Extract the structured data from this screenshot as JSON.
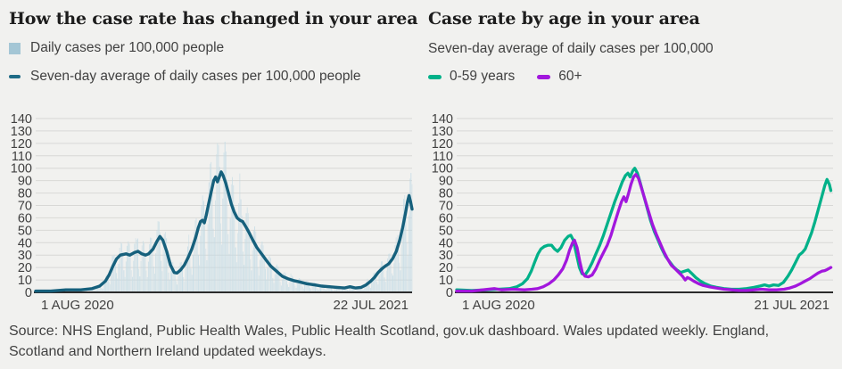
{
  "page": {
    "background": "#f1f1ef",
    "grid_color": "#d8d8d6",
    "baseline_color": "#2b2b2b",
    "axis_text_color": "#404040"
  },
  "left_panel": {
    "title": "How the case rate has changed in your area",
    "legend": [
      {
        "label": "Daily cases per 100,000 people",
        "swatch": "square",
        "color": "#a4c6d5"
      },
      {
        "label": "Seven-day average of daily cases per 100,000 people",
        "swatch": "dash",
        "color": "#1f6b86"
      }
    ]
  },
  "right_panel": {
    "title": "Case rate by age in your area",
    "subtitle": "Seven-day average of daily cases per 100,000",
    "legend": [
      {
        "label": "0-59 years",
        "swatch": "dash",
        "color": "#00b189"
      },
      {
        "label": "60+",
        "swatch": "dash",
        "color": "#a217dd"
      }
    ]
  },
  "footer": {
    "line1": "Source: NHS England, Public Health Wales, Public Health Scotland, gov.uk dashboard. Wales updated weekly. England,",
    "line2": "Scotland and Northern Ireland updated weekdays."
  },
  "chart_data": [
    {
      "type": "bar+line",
      "title": "How the case rate has changed in your area",
      "ylabel": "Daily cases per 100,000 people",
      "ylim": [
        0,
        140
      ],
      "y_ticks": [
        0,
        10,
        20,
        30,
        40,
        50,
        60,
        70,
        80,
        90,
        100,
        110,
        120,
        130,
        140
      ],
      "grid": true,
      "x_axis": {
        "start_label": "1 AUG 2020",
        "end_label": "22 JUL 2021"
      },
      "bars": {
        "name": "Daily cases per 100,000 people",
        "color": "#c3dbe5",
        "n": 355,
        "estimated_from_average": true,
        "weekly_pattern": [
          0.4,
          0.8,
          1.22,
          1.35,
          1.3,
          1.08,
          0.58
        ],
        "spike_every": 24,
        "spike_factor": 1.22,
        "max_value": 140.5,
        "opacity_cycle": [
          0.5,
          0.75,
          0.6,
          0.85,
          0.55,
          0.7,
          0.8,
          0.65,
          0.9,
          0.6
        ]
      },
      "line": {
        "name": "Seven-day average of daily cases per 100,000 people",
        "color": "#16607c",
        "width": 3.4,
        "points": [
          [
            0,
            1
          ],
          [
            0.04,
            1
          ],
          [
            0.08,
            2
          ],
          [
            0.12,
            2
          ],
          [
            0.15,
            3
          ],
          [
            0.17,
            5
          ],
          [
            0.185,
            9
          ],
          [
            0.195,
            14
          ],
          [
            0.205,
            21
          ],
          [
            0.215,
            27
          ],
          [
            0.225,
            30
          ],
          [
            0.24,
            31
          ],
          [
            0.25,
            30
          ],
          [
            0.262,
            32
          ],
          [
            0.272,
            33
          ],
          [
            0.282,
            31
          ],
          [
            0.292,
            30
          ],
          [
            0.3,
            31
          ],
          [
            0.312,
            35
          ],
          [
            0.322,
            41
          ],
          [
            0.33,
            45
          ],
          [
            0.338,
            42
          ],
          [
            0.348,
            33
          ],
          [
            0.358,
            22
          ],
          [
            0.368,
            16
          ],
          [
            0.375,
            15.5
          ],
          [
            0.385,
            18
          ],
          [
            0.395,
            22
          ],
          [
            0.405,
            28
          ],
          [
            0.415,
            35
          ],
          [
            0.425,
            44
          ],
          [
            0.432,
            52
          ],
          [
            0.438,
            57
          ],
          [
            0.443,
            58
          ],
          [
            0.448,
            56
          ],
          [
            0.453,
            62
          ],
          [
            0.46,
            72
          ],
          [
            0.467,
            82
          ],
          [
            0.473,
            90
          ],
          [
            0.478,
            93
          ],
          [
            0.483,
            89
          ],
          [
            0.488,
            93
          ],
          [
            0.493,
            97
          ],
          [
            0.498,
            94
          ],
          [
            0.505,
            88
          ],
          [
            0.512,
            80
          ],
          [
            0.52,
            71
          ],
          [
            0.527,
            65
          ],
          [
            0.535,
            60
          ],
          [
            0.543,
            58
          ],
          [
            0.55,
            57
          ],
          [
            0.558,
            53
          ],
          [
            0.567,
            48
          ],
          [
            0.577,
            42
          ],
          [
            0.588,
            36
          ],
          [
            0.6,
            31
          ],
          [
            0.612,
            26
          ],
          [
            0.625,
            21
          ],
          [
            0.64,
            17
          ],
          [
            0.655,
            13
          ],
          [
            0.67,
            11
          ],
          [
            0.685,
            9.5
          ],
          [
            0.7,
            8.5
          ],
          [
            0.72,
            7
          ],
          [
            0.74,
            6
          ],
          [
            0.76,
            5
          ],
          [
            0.78,
            4.5
          ],
          [
            0.8,
            4
          ],
          [
            0.82,
            3.5
          ],
          [
            0.835,
            4.5
          ],
          [
            0.85,
            3.5
          ],
          [
            0.865,
            4
          ],
          [
            0.878,
            6
          ],
          [
            0.89,
            9
          ],
          [
            0.9,
            12
          ],
          [
            0.91,
            16
          ],
          [
            0.92,
            19
          ],
          [
            0.928,
            21
          ],
          [
            0.938,
            23
          ],
          [
            0.948,
            27
          ],
          [
            0.958,
            33
          ],
          [
            0.967,
            42
          ],
          [
            0.975,
            52
          ],
          [
            0.982,
            63
          ],
          [
            0.988,
            73
          ],
          [
            0.992,
            78
          ],
          [
            0.996,
            73
          ],
          [
            1,
            67
          ]
        ]
      }
    },
    {
      "type": "line",
      "title": "Case rate by age in your area",
      "ylabel": "Seven-day average of daily cases per 100,000",
      "ylim": [
        0,
        140
      ],
      "y_ticks": [
        0,
        10,
        20,
        30,
        40,
        50,
        60,
        70,
        80,
        90,
        100,
        110,
        120,
        130,
        140
      ],
      "grid": true,
      "x_axis": {
        "start_label": "1 AUG 2020",
        "end_label": "21 JUL 2021"
      },
      "series": [
        {
          "name": "0-59 years",
          "color": "#00b189",
          "width": 3.3,
          "points": [
            [
              0,
              2
            ],
            [
              0.04,
              1.5
            ],
            [
              0.08,
              2
            ],
            [
              0.11,
              2.5
            ],
            [
              0.14,
              3
            ],
            [
              0.16,
              4.5
            ],
            [
              0.175,
              7
            ],
            [
              0.188,
              11
            ],
            [
              0.198,
              17
            ],
            [
              0.208,
              25
            ],
            [
              0.216,
              31
            ],
            [
              0.224,
              35
            ],
            [
              0.233,
              37
            ],
            [
              0.243,
              38
            ],
            [
              0.252,
              38
            ],
            [
              0.26,
              35
            ],
            [
              0.268,
              33
            ],
            [
              0.277,
              36
            ],
            [
              0.287,
              42
            ],
            [
              0.296,
              45
            ],
            [
              0.303,
              46
            ],
            [
              0.31,
              42
            ],
            [
              0.318,
              31
            ],
            [
              0.326,
              20
            ],
            [
              0.333,
              15
            ],
            [
              0.341,
              14
            ],
            [
              0.35,
              18
            ],
            [
              0.36,
              24
            ],
            [
              0.37,
              31
            ],
            [
              0.38,
              38
            ],
            [
              0.39,
              46
            ],
            [
              0.4,
              55
            ],
            [
              0.41,
              64
            ],
            [
              0.42,
              73
            ],
            [
              0.43,
              81
            ],
            [
              0.44,
              89
            ],
            [
              0.448,
              94
            ],
            [
              0.455,
              96
            ],
            [
              0.461,
              93
            ],
            [
              0.468,
              98
            ],
            [
              0.473,
              100
            ],
            [
              0.48,
              96
            ],
            [
              0.488,
              88
            ],
            [
              0.497,
              78
            ],
            [
              0.506,
              68
            ],
            [
              0.515,
              58
            ],
            [
              0.525,
              49
            ],
            [
              0.535,
              42
            ],
            [
              0.545,
              35
            ],
            [
              0.555,
              29
            ],
            [
              0.565,
              25
            ],
            [
              0.575,
              21
            ],
            [
              0.585,
              18
            ],
            [
              0.595,
              16
            ],
            [
              0.605,
              17
            ],
            [
              0.615,
              18
            ],
            [
              0.625,
              15
            ],
            [
              0.635,
              12
            ],
            [
              0.648,
              9
            ],
            [
              0.66,
              7
            ],
            [
              0.675,
              5
            ],
            [
              0.69,
              4
            ],
            [
              0.71,
              3
            ],
            [
              0.73,
              2.5
            ],
            [
              0.75,
              2.5
            ],
            [
              0.77,
              3
            ],
            [
              0.79,
              4
            ],
            [
              0.805,
              5
            ],
            [
              0.818,
              6
            ],
            [
              0.83,
              5
            ],
            [
              0.842,
              6
            ],
            [
              0.855,
              5.5
            ],
            [
              0.868,
              8
            ],
            [
              0.88,
              13
            ],
            [
              0.89,
              18
            ],
            [
              0.9,
              24
            ],
            [
              0.91,
              30
            ],
            [
              0.918,
              32
            ],
            [
              0.926,
              35
            ],
            [
              0.934,
              41
            ],
            [
              0.943,
              48
            ],
            [
              0.952,
              57
            ],
            [
              0.961,
              67
            ],
            [
              0.97,
              77
            ],
            [
              0.978,
              86
            ],
            [
              0.984,
              91
            ],
            [
              0.99,
              87
            ],
            [
              0.994,
              82
            ]
          ]
        },
        {
          "name": "60+",
          "color": "#a217dd",
          "width": 3.3,
          "points": [
            [
              0,
              1
            ],
            [
              0.04,
              1
            ],
            [
              0.07,
              2
            ],
            [
              0.1,
              3
            ],
            [
              0.12,
              2
            ],
            [
              0.15,
              2.5
            ],
            [
              0.18,
              2
            ],
            [
              0.2,
              2.5
            ],
            [
              0.215,
              3
            ],
            [
              0.23,
              4.5
            ],
            [
              0.245,
              7
            ],
            [
              0.258,
              10
            ],
            [
              0.27,
              14
            ],
            [
              0.282,
              19
            ],
            [
              0.292,
              26
            ],
            [
              0.3,
              34
            ],
            [
              0.308,
              40
            ],
            [
              0.313,
              42
            ],
            [
              0.32,
              36
            ],
            [
              0.327,
              25
            ],
            [
              0.334,
              16
            ],
            [
              0.341,
              13
            ],
            [
              0.35,
              12.5
            ],
            [
              0.36,
              14
            ],
            [
              0.37,
              19
            ],
            [
              0.38,
              26
            ],
            [
              0.39,
              32
            ],
            [
              0.4,
              38
            ],
            [
              0.41,
              46
            ],
            [
              0.42,
              56
            ],
            [
              0.43,
              66
            ],
            [
              0.438,
              73
            ],
            [
              0.444,
              77
            ],
            [
              0.45,
              73
            ],
            [
              0.456,
              79
            ],
            [
              0.463,
              87
            ],
            [
              0.47,
              93
            ],
            [
              0.476,
              95
            ],
            [
              0.483,
              92
            ],
            [
              0.49,
              85
            ],
            [
              0.5,
              75
            ],
            [
              0.51,
              65
            ],
            [
              0.52,
              55
            ],
            [
              0.53,
              47
            ],
            [
              0.54,
              40
            ],
            [
              0.55,
              33
            ],
            [
              0.56,
              27
            ],
            [
              0.57,
              22
            ],
            [
              0.58,
              19
            ],
            [
              0.59,
              16
            ],
            [
              0.6,
              13
            ],
            [
              0.607,
              10
            ],
            [
              0.613,
              12
            ],
            [
              0.62,
              11
            ],
            [
              0.63,
              9
            ],
            [
              0.643,
              7
            ],
            [
              0.655,
              5.5
            ],
            [
              0.67,
              4.5
            ],
            [
              0.69,
              3.5
            ],
            [
              0.71,
              2.5
            ],
            [
              0.73,
              2
            ],
            [
              0.75,
              1.5
            ],
            [
              0.77,
              1.5
            ],
            [
              0.79,
              2
            ],
            [
              0.81,
              2.5
            ],
            [
              0.83,
              2
            ],
            [
              0.85,
              2
            ],
            [
              0.87,
              2.5
            ],
            [
              0.885,
              3.5
            ],
            [
              0.9,
              5
            ],
            [
              0.913,
              7
            ],
            [
              0.925,
              9
            ],
            [
              0.938,
              11
            ],
            [
              0.95,
              13.5
            ],
            [
              0.96,
              15.5
            ],
            [
              0.97,
              17
            ],
            [
              0.978,
              17.5
            ],
            [
              0.985,
              18.5
            ],
            [
              0.994,
              20
            ]
          ]
        }
      ]
    }
  ]
}
